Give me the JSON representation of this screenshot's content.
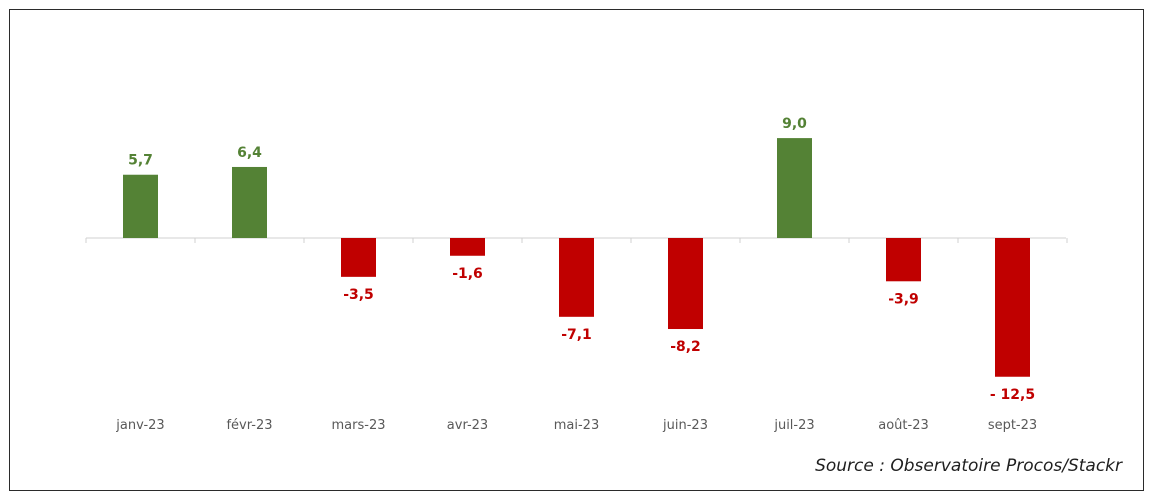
{
  "chart_data": {
    "type": "bar",
    "categories": [
      "janv-23",
      "févr-23",
      "mars-23",
      "avr-23",
      "mai-23",
      "juin-23",
      "juil-23",
      "août-23",
      "sept-23"
    ],
    "values": [
      5.7,
      6.4,
      -3.5,
      -1.6,
      -7.1,
      -8.2,
      9.0,
      -3.9,
      -12.5
    ],
    "value_labels": [
      "5,7",
      "6,4",
      "-3,5",
      "-1,6",
      "-7,1",
      "-8,2",
      "9,0",
      "-3,9",
      "- 12,5"
    ],
    "title": "",
    "xlabel": "",
    "ylabel": "",
    "ylim": [
      -12.5,
      9.0
    ],
    "grid": false,
    "colors": {
      "positive": "#548235",
      "negative": "#C00000",
      "axis": "#d0d0d0",
      "tick_text": "#595959"
    }
  },
  "source": "Source : Observatoire Procos/Stackr"
}
